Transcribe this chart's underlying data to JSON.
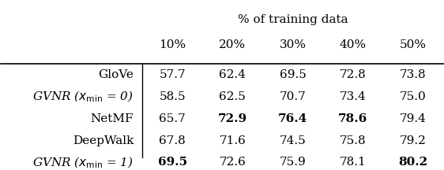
{
  "title": "% of training data",
  "col_headers": [
    "10%",
    "20%",
    "30%",
    "40%",
    "50%"
  ],
  "rows": [
    {
      "label": "GloVe",
      "italic": false,
      "values": [
        "57.7",
        "62.4",
        "69.5",
        "72.8",
        "73.8"
      ],
      "bold": [
        false,
        false,
        false,
        false,
        false
      ]
    },
    {
      "label": "GVNR ($x_{\\mathrm{min}}$ = 0)",
      "italic": true,
      "values": [
        "58.5",
        "62.5",
        "70.7",
        "73.4",
        "75.0"
      ],
      "bold": [
        false,
        false,
        false,
        false,
        false
      ]
    },
    {
      "label": "NetMF",
      "italic": false,
      "values": [
        "65.7",
        "72.9",
        "76.4",
        "78.6",
        "79.4"
      ],
      "bold": [
        false,
        true,
        true,
        true,
        false
      ]
    },
    {
      "label": "DeepWalk",
      "italic": false,
      "values": [
        "67.8",
        "71.6",
        "74.5",
        "75.8",
        "79.2"
      ],
      "bold": [
        false,
        false,
        false,
        false,
        false
      ]
    },
    {
      "label": "GVNR ($x_{\\mathrm{min}}$ = 1)",
      "italic": true,
      "values": [
        "69.5",
        "72.6",
        "75.9",
        "78.1",
        "80.2"
      ],
      "bold": [
        true,
        false,
        false,
        false,
        true
      ]
    }
  ],
  "background_color": "#ffffff",
  "line_color": "#000000",
  "text_color": "#000000",
  "font_size": 11,
  "header_font_size": 11
}
